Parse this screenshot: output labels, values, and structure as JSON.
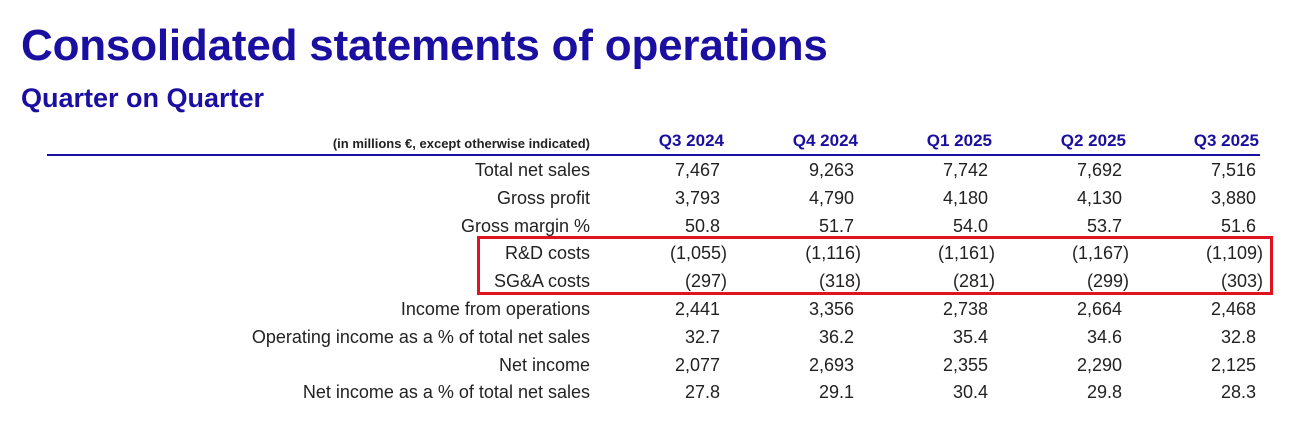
{
  "header": {
    "title": "Consolidated statements of operations",
    "subtitle": "Quarter on Quarter"
  },
  "table": {
    "units_note": "(in millions €, except otherwise indicated)",
    "periods": [
      "Q3 2024",
      "Q4 2024",
      "Q1 2025",
      "Q2 2025",
      "Q3 2025"
    ],
    "rows": [
      {
        "label": "Total net sales",
        "values": [
          "7,467",
          "9,263",
          "7,742",
          "7,692",
          "7,516"
        ]
      },
      {
        "label": "Gross profit",
        "values": [
          "3,793",
          "4,790",
          "4,180",
          "4,130",
          "3,880"
        ]
      },
      {
        "label": "Gross margin %",
        "values": [
          "50.8",
          "51.7",
          "54.0",
          "53.7",
          "51.6"
        ]
      },
      {
        "label": "R&D costs",
        "values": [
          "(1,055)",
          "(1,116)",
          "(1,161)",
          "(1,167)",
          "(1,109)"
        ]
      },
      {
        "label": "SG&A costs",
        "values": [
          "(297)",
          "(318)",
          "(281)",
          "(299)",
          "(303)"
        ]
      },
      {
        "label": "Income from operations",
        "values": [
          "2,441",
          "3,356",
          "2,738",
          "2,664",
          "2,468"
        ]
      },
      {
        "label": "Operating income as a % of total net sales",
        "values": [
          "32.7",
          "36.2",
          "35.4",
          "34.6",
          "32.8"
        ]
      },
      {
        "label": "Net income",
        "values": [
          "2,077",
          "2,693",
          "2,355",
          "2,290",
          "2,125"
        ]
      },
      {
        "label": "Net income as a % of total net sales",
        "values": [
          "27.8",
          "29.1",
          "30.4",
          "29.8",
          "28.3"
        ]
      }
    ]
  },
  "colors": {
    "brand_blue": "#1a0fa0",
    "highlight_red": "#e0141e",
    "text": "#222222"
  }
}
